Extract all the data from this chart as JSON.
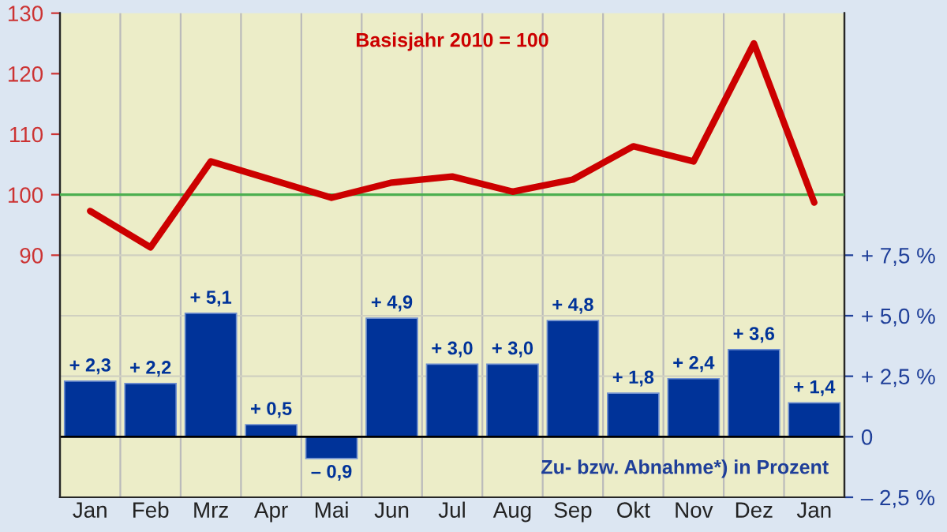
{
  "chart_data": {
    "type": "bar",
    "categories": [
      "Jan",
      "Feb",
      "Mrz",
      "Apr",
      "Mai",
      "Jun",
      "Jul",
      "Aug",
      "Sep",
      "Okt",
      "Nov",
      "Dez",
      "Jan"
    ],
    "series": [
      {
        "type": "line",
        "axis": "y",
        "color": "#cc0000",
        "values": [
          97.3,
          91.3,
          105.5,
          102.5,
          99.5,
          102,
          103,
          100.5,
          102.5,
          108,
          105.5,
          125,
          98.7
        ]
      },
      {
        "axis": "y2",
        "color": "#003399",
        "values": [
          2.3,
          2.2,
          5.1,
          0.5,
          -0.9,
          4.9,
          3.0,
          3.0,
          4.8,
          1.8,
          2.4,
          3.6,
          1.4
        ],
        "value_labels": [
          "+ 2,3",
          "+ 2,2",
          "+ 5,1",
          "+ 0,5",
          "– 0,9",
          "+ 4,9",
          "+ 3,0",
          "+ 3,0",
          "+ 4,8",
          "+ 1,8",
          "+ 2,4",
          "+ 3,6",
          "+ 1,4"
        ]
      }
    ],
    "ylim": [
      50,
      130
    ],
    "yticks": [
      90,
      100,
      110,
      120,
      130
    ],
    "y2lim": [
      -2.5,
      17.5
    ],
    "y2ticks": [
      {
        "value": -2.5,
        "label": "– 2,5 %"
      },
      0,
      {
        "value": 2.5,
        "label": "+ 2,5 %"
      },
      {
        "value": 5.0,
        "label": "+ 5,0 %"
      },
      {
        "value": 7.5,
        "label": "+ 7,5 %"
      }
    ],
    "ref_lines": [
      {
        "axis": "y",
        "value": 100,
        "color": "#4caf50"
      }
    ],
    "annotations": [
      "Basisjahr 2010 = 100",
      "Zu- bzw. Abnahme*) in Prozent"
    ],
    "grid": true,
    "legend": false
  }
}
